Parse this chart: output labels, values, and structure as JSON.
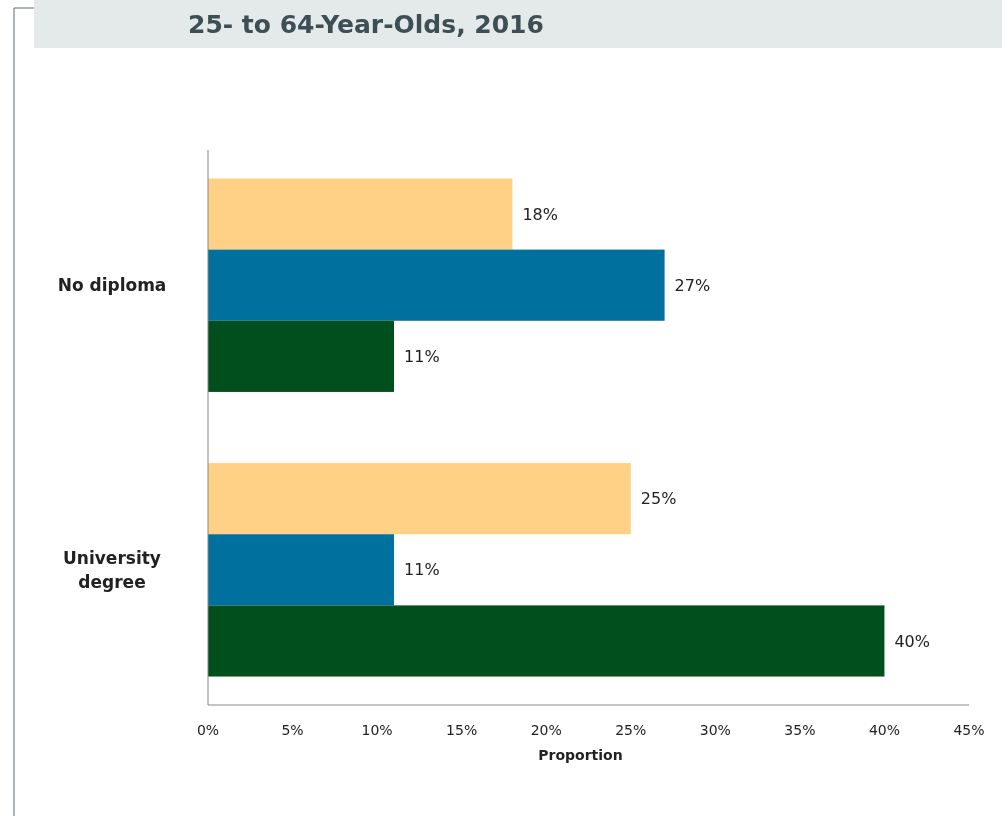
{
  "chart_data": {
    "type": "bar",
    "orientation": "horizontal",
    "title": "25- to 64-Year-Olds, 2016",
    "xlabel": "Proportion",
    "categories": [
      "No diploma",
      "University degree"
    ],
    "series": [
      {
        "color": "#fed186",
        "values": [
          18,
          25
        ],
        "value_labels": [
          "18%",
          "25%"
        ]
      },
      {
        "color": "#00709e",
        "values": [
          27,
          11
        ],
        "value_labels": [
          "27%",
          "11%"
        ]
      },
      {
        "color": "#024f1e",
        "values": [
          11,
          40
        ],
        "value_labels": [
          "11%",
          "40%"
        ]
      }
    ],
    "xlim": [
      0,
      45
    ],
    "xticks": [
      {
        "value": 0,
        "label": "0%"
      },
      {
        "value": 5,
        "label": "5%"
      },
      {
        "value": 10,
        "label": "10%"
      },
      {
        "value": 15,
        "label": "15%"
      },
      {
        "value": 20,
        "label": "20%"
      },
      {
        "value": 25,
        "label": "25%"
      },
      {
        "value": 30,
        "label": "30%"
      },
      {
        "value": 35,
        "label": "35%"
      },
      {
        "value": 40,
        "label": "40%"
      },
      {
        "value": 45,
        "label": "45%"
      }
    ],
    "grid": false
  }
}
